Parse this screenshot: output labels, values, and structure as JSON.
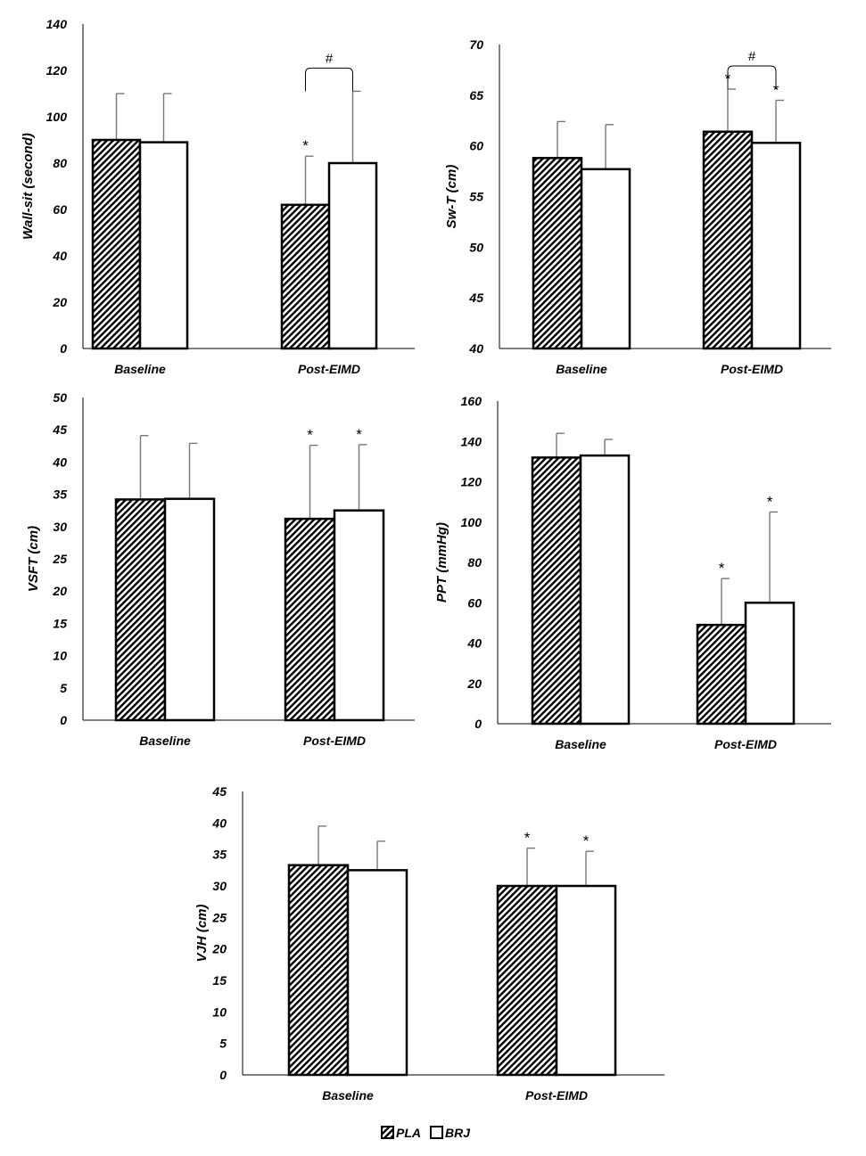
{
  "legend": [
    {
      "name": "PLA",
      "pattern": "hatched",
      "color": "#000000"
    },
    {
      "name": "BRJ",
      "pattern": "white",
      "color": "#ffffff"
    }
  ],
  "chart_data": [
    {
      "type": "bar",
      "ylabel": "Wall-sit (second)",
      "ylim": [
        0,
        140
      ],
      "yticks": [
        0,
        20,
        40,
        60,
        80,
        100,
        120,
        140
      ],
      "categories": [
        "Baseline",
        "Post-EIMD"
      ],
      "series": [
        {
          "name": "PLA",
          "values": [
            90,
            62
          ],
          "errors": [
            20,
            21
          ],
          "stars": [
            "",
            "*"
          ]
        },
        {
          "name": "BRJ",
          "values": [
            89,
            80
          ],
          "errors": [
            21,
            31
          ],
          "stars": [
            "",
            ""
          ]
        }
      ],
      "brackets": [
        {
          "category": 1,
          "label": "#"
        }
      ]
    },
    {
      "type": "bar",
      "ylabel": "Sw-T (cm)",
      "ylim": [
        40,
        70
      ],
      "yticks": [
        40,
        45,
        50,
        55,
        60,
        65,
        70
      ],
      "categories": [
        "Baseline",
        "Post-EIMD"
      ],
      "series": [
        {
          "name": "PLA",
          "values": [
            58.8,
            61.4
          ],
          "errors": [
            3.6,
            4.2
          ],
          "stars": [
            "",
            "*"
          ]
        },
        {
          "name": "BRJ",
          "values": [
            57.7,
            60.3
          ],
          "errors": [
            4.4,
            4.2
          ],
          "stars": [
            "",
            "*"
          ]
        }
      ],
      "brackets": [
        {
          "category": 1,
          "label": "#"
        }
      ]
    },
    {
      "type": "bar",
      "ylabel": "VSFT (cm)",
      "ylim": [
        0,
        50
      ],
      "yticks": [
        0,
        5,
        10,
        15,
        20,
        25,
        30,
        35,
        40,
        45,
        50
      ],
      "categories": [
        "Baseline",
        "Post-EIMD"
      ],
      "series": [
        {
          "name": "PLA",
          "values": [
            34.2,
            31.2
          ],
          "errors": [
            9.9,
            11.4
          ],
          "stars": [
            "",
            "*"
          ]
        },
        {
          "name": "BRJ",
          "values": [
            34.3,
            32.5
          ],
          "errors": [
            8.6,
            10.2
          ],
          "stars": [
            "",
            "*"
          ]
        }
      ],
      "brackets": []
    },
    {
      "type": "bar",
      "ylabel": "PPT (mmHg)",
      "ylim": [
        0,
        160
      ],
      "yticks": [
        0,
        20,
        40,
        60,
        80,
        100,
        120,
        140,
        160
      ],
      "categories": [
        "Baseline",
        "Post-EIMD"
      ],
      "series": [
        {
          "name": "PLA",
          "values": [
            132,
            49
          ],
          "errors": [
            12,
            23
          ],
          "stars": [
            "",
            "*"
          ]
        },
        {
          "name": "BRJ",
          "values": [
            133,
            60
          ],
          "errors": [
            8,
            45
          ],
          "stars": [
            "",
            "*"
          ]
        }
      ],
      "brackets": []
    },
    {
      "type": "bar",
      "ylabel": "VJH (cm)",
      "ylim": [
        0,
        45
      ],
      "yticks": [
        0,
        5,
        10,
        15,
        20,
        25,
        30,
        35,
        40,
        45
      ],
      "categories": [
        "Baseline",
        "Post-EIMD"
      ],
      "series": [
        {
          "name": "PLA",
          "values": [
            33.3,
            30
          ],
          "errors": [
            6.2,
            6
          ],
          "stars": [
            "",
            "*"
          ]
        },
        {
          "name": "BRJ",
          "values": [
            32.5,
            30
          ],
          "errors": [
            4.6,
            5.5
          ],
          "stars": [
            "",
            "*"
          ]
        }
      ],
      "brackets": []
    }
  ]
}
